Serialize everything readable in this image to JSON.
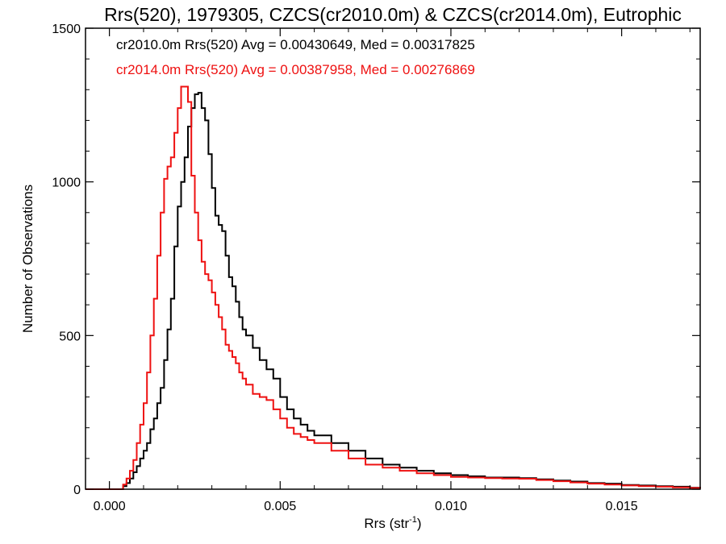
{
  "chart_data": {
    "type": "line",
    "title": "Rrs(520), 1979305, CZCS(cr2010.0m) & CZCS(cr2014.0m), Eutrophic",
    "xlabel_main": "Rrs (str",
    "xlabel_sup": "-1",
    "xlabel_close": ")",
    "ylabel": "Number of Observations",
    "xlim": [
      -0.0007,
      0.0173
    ],
    "ylim": [
      0,
      1500
    ],
    "xticks": [
      "0.000",
      "0.005",
      "0.010",
      "0.015"
    ],
    "xtick_values": [
      0,
      0.005,
      0.01,
      0.015
    ],
    "yticks": [
      "0",
      "500",
      "1000",
      "1500"
    ],
    "ytick_values": [
      0,
      500,
      1000,
      1500
    ],
    "grid": false,
    "legend": [
      {
        "text": "cr2010.0m Rrs(520) Avg = 0.00430649, Med = 0.00317825",
        "color": "#000000"
      },
      {
        "text": "cr2014.0m Rrs(520) Avg = 0.00387958, Med = 0.00276869",
        "color": "#ee1111"
      }
    ],
    "series": [
      {
        "color": "#000000",
        "x": [
          -0.0007,
          0.0003,
          0.0004,
          0.0005,
          0.0006,
          0.0007,
          0.0008,
          0.0009,
          0.001,
          0.0011,
          0.0012,
          0.0013,
          0.0014,
          0.0015,
          0.0016,
          0.0017,
          0.0018,
          0.0019,
          0.002,
          0.0021,
          0.0022,
          0.0023,
          0.0024,
          0.0025,
          0.0026,
          0.0027,
          0.0028,
          0.0029,
          0.003,
          0.0031,
          0.0032,
          0.0033,
          0.0034,
          0.0035,
          0.0036,
          0.0037,
          0.0038,
          0.0039,
          0.004,
          0.0042,
          0.0044,
          0.0046,
          0.0048,
          0.005,
          0.0052,
          0.0054,
          0.0056,
          0.0058,
          0.006,
          0.0065,
          0.007,
          0.0075,
          0.008,
          0.0085,
          0.009,
          0.0095,
          0.01,
          0.0105,
          0.011,
          0.0115,
          0.012,
          0.0125,
          0.013,
          0.0135,
          0.014,
          0.0145,
          0.015,
          0.0155,
          0.016,
          0.0165,
          0.017,
          0.0173
        ],
        "y": [
          0,
          0,
          10,
          20,
          35,
          55,
          75,
          100,
          125,
          150,
          195,
          230,
          280,
          330,
          420,
          520,
          620,
          790,
          920,
          1000,
          1080,
          1180,
          1240,
          1285,
          1290,
          1240,
          1200,
          1090,
          980,
          890,
          860,
          840,
          760,
          690,
          660,
          610,
          560,
          520,
          500,
          460,
          420,
          390,
          360,
          300,
          260,
          230,
          210,
          190,
          175,
          150,
          125,
          100,
          80,
          70,
          60,
          52,
          46,
          42,
          38,
          38,
          36,
          32,
          28,
          25,
          20,
          18,
          14,
          12,
          10,
          8,
          5,
          2
        ]
      },
      {
        "color": "#ee1111",
        "x": [
          -0.0007,
          0.0003,
          0.0004,
          0.0005,
          0.0006,
          0.0007,
          0.0008,
          0.0009,
          0.001,
          0.0011,
          0.0012,
          0.0013,
          0.0014,
          0.0015,
          0.0016,
          0.0017,
          0.0018,
          0.0019,
          0.002,
          0.0021,
          0.0022,
          0.0023,
          0.0024,
          0.0025,
          0.0026,
          0.0027,
          0.0028,
          0.0029,
          0.003,
          0.0031,
          0.0032,
          0.0033,
          0.0034,
          0.0035,
          0.0036,
          0.0037,
          0.0038,
          0.0039,
          0.004,
          0.0042,
          0.0044,
          0.0046,
          0.0048,
          0.005,
          0.0052,
          0.0054,
          0.0056,
          0.0058,
          0.006,
          0.0065,
          0.007,
          0.0075,
          0.008,
          0.0085,
          0.009,
          0.0095,
          0.01,
          0.0105,
          0.011,
          0.0115,
          0.012,
          0.0125,
          0.013,
          0.0135,
          0.014,
          0.0145,
          0.015,
          0.0155,
          0.016,
          0.0165,
          0.017,
          0.0173
        ],
        "y": [
          0,
          0,
          15,
          35,
          60,
          95,
          150,
          210,
          280,
          380,
          500,
          620,
          760,
          900,
          1010,
          1050,
          1080,
          1160,
          1240,
          1310,
          1310,
          1260,
          1020,
          900,
          810,
          740,
          700,
          680,
          640,
          600,
          560,
          520,
          470,
          450,
          430,
          410,
          380,
          360,
          340,
          310,
          300,
          290,
          260,
          230,
          200,
          180,
          170,
          160,
          150,
          125,
          100,
          80,
          70,
          60,
          52,
          46,
          40,
          38,
          36,
          35,
          34,
          30,
          26,
          22,
          18,
          15,
          12,
          10,
          8,
          6,
          4,
          2
        ]
      }
    ]
  }
}
